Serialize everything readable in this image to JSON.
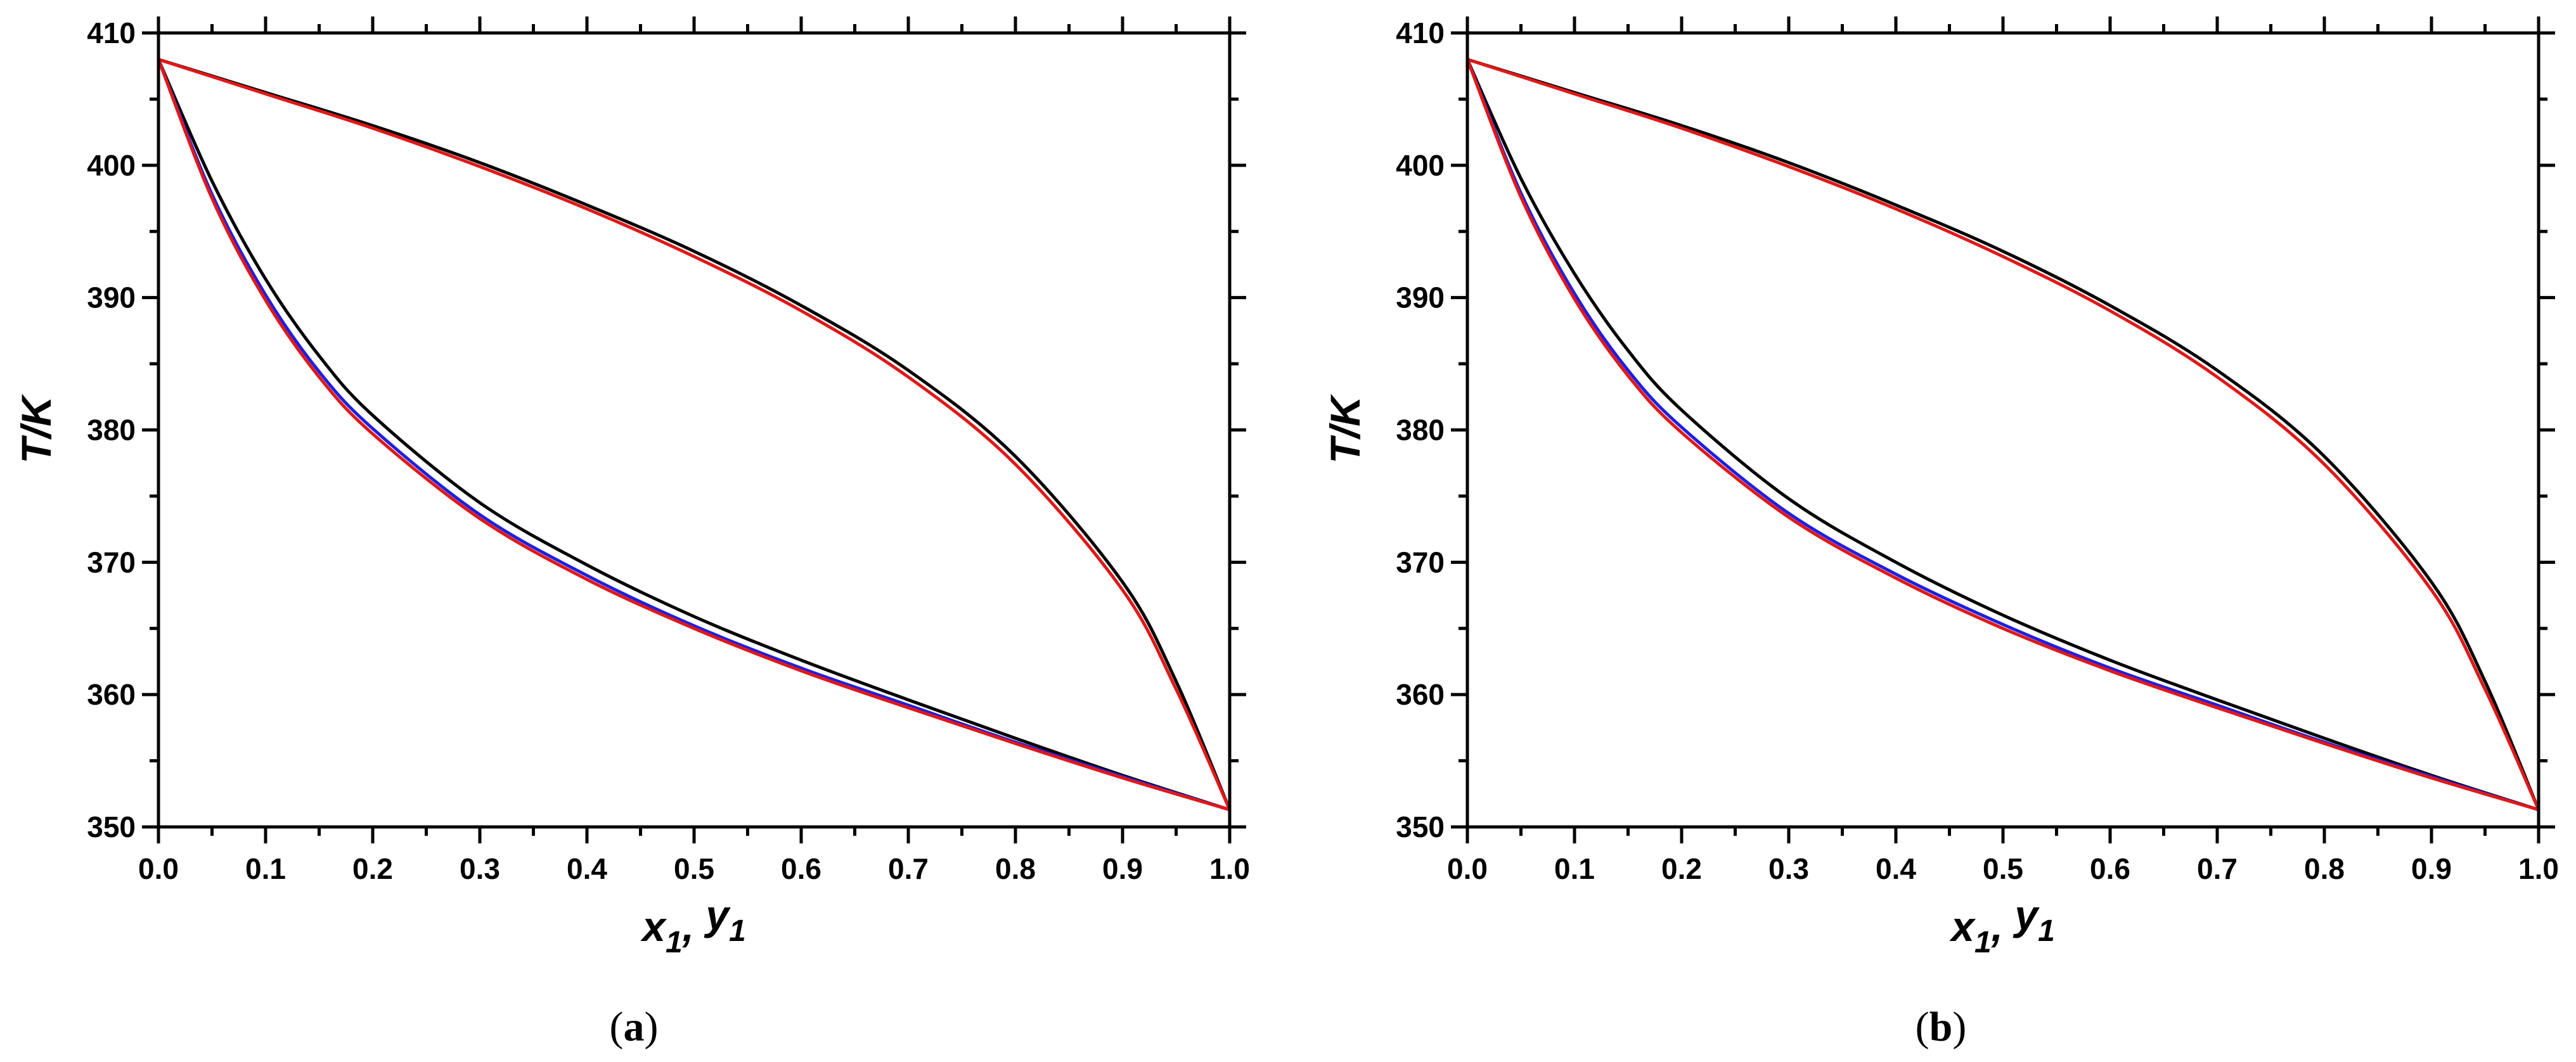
{
  "chart_data": [
    {
      "type": "line",
      "panel_label": {
        "open": "(",
        "letter": "a",
        "close": ")"
      },
      "xlabel": {
        "v1": "x",
        "s1": "1",
        "sep": ", ",
        "v2": "y",
        "s2": "1"
      },
      "ylabel": "T/K",
      "xlim": [
        0.0,
        1.0
      ],
      "ylim": [
        350,
        410
      ],
      "xticks": [
        "0.0",
        "0.1",
        "0.2",
        "0.3",
        "0.4",
        "0.5",
        "0.6",
        "0.7",
        "0.8",
        "0.9",
        "1.0"
      ],
      "yticks": [
        "350",
        "360",
        "370",
        "380",
        "390",
        "400",
        "410"
      ],
      "grid": false,
      "colors": {
        "black": "#000000",
        "blue": "#1f1fe0",
        "red": "#e01818"
      },
      "series": [
        {
          "color": "black",
          "x": [
            0.0,
            0.1,
            0.2,
            0.3,
            0.4,
            0.5,
            0.6,
            0.7,
            0.8,
            0.9,
            0.95,
            1.0
          ],
          "y": [
            408.0,
            405.5,
            403.0,
            400.2,
            397.0,
            393.5,
            389.4,
            384.5,
            378.0,
            368.5,
            361.0,
            351.3
          ]
        },
        {
          "color": "red",
          "x": [
            0.0,
            0.1,
            0.2,
            0.3,
            0.4,
            0.5,
            0.6,
            0.7,
            0.8,
            0.9,
            0.95,
            1.0
          ],
          "y": [
            408.0,
            405.4,
            402.8,
            399.9,
            396.7,
            393.1,
            389.0,
            384.0,
            377.4,
            367.9,
            360.4,
            351.3
          ]
        },
        {
          "color": "black",
          "x": [
            0.0,
            0.05,
            0.1,
            0.15,
            0.2,
            0.3,
            0.4,
            0.5,
            0.6,
            0.7,
            0.8,
            0.9,
            1.0
          ],
          "y": [
            408.0,
            398.8,
            391.4,
            385.6,
            381.1,
            374.5,
            369.8,
            365.9,
            362.6,
            359.6,
            356.7,
            353.9,
            351.3
          ]
        },
        {
          "color": "blue",
          "x": [
            0.0,
            0.05,
            0.1,
            0.15,
            0.2,
            0.3,
            0.4,
            0.5,
            0.6,
            0.7,
            0.8,
            0.9,
            1.0
          ],
          "y": [
            408.0,
            397.8,
            390.2,
            384.4,
            380.1,
            373.6,
            369.0,
            365.2,
            362.0,
            359.2,
            356.4,
            353.8,
            351.3
          ]
        },
        {
          "color": "red",
          "x": [
            0.0,
            0.05,
            0.1,
            0.15,
            0.2,
            0.3,
            0.4,
            0.5,
            0.6,
            0.7,
            0.8,
            0.9,
            1.0
          ],
          "y": [
            408.0,
            397.5,
            389.8,
            384.0,
            379.7,
            373.3,
            368.7,
            365.0,
            361.8,
            359.0,
            356.3,
            353.7,
            351.3
          ]
        }
      ]
    },
    {
      "type": "line",
      "panel_label": {
        "open": "(",
        "letter": "b",
        "close": ")"
      },
      "xlabel": {
        "v1": "x",
        "s1": "1",
        "sep": ", ",
        "v2": "y",
        "s2": "1"
      },
      "ylabel": "T/K",
      "xlim": [
        0.0,
        1.0
      ],
      "ylim": [
        350,
        410
      ],
      "xticks": [
        "0.0",
        "0.1",
        "0.2",
        "0.3",
        "0.4",
        "0.5",
        "0.6",
        "0.7",
        "0.8",
        "0.9",
        "1.0"
      ],
      "yticks": [
        "350",
        "360",
        "370",
        "380",
        "390",
        "400",
        "410"
      ],
      "grid": false,
      "colors": {
        "black": "#000000",
        "blue": "#1f1fe0",
        "red": "#e01818"
      },
      "series": [
        {
          "color": "black",
          "x": [
            0.0,
            0.1,
            0.2,
            0.3,
            0.4,
            0.5,
            0.6,
            0.7,
            0.8,
            0.9,
            0.95,
            1.0
          ],
          "y": [
            408.0,
            405.5,
            403.0,
            400.2,
            397.0,
            393.5,
            389.4,
            384.5,
            378.0,
            368.5,
            361.0,
            351.3
          ]
        },
        {
          "color": "red",
          "x": [
            0.0,
            0.1,
            0.2,
            0.3,
            0.4,
            0.5,
            0.6,
            0.7,
            0.8,
            0.9,
            0.95,
            1.0
          ],
          "y": [
            408.0,
            405.4,
            402.8,
            399.9,
            396.7,
            393.1,
            389.0,
            384.0,
            377.4,
            367.9,
            360.4,
            351.3
          ]
        },
        {
          "color": "black",
          "x": [
            0.0,
            0.05,
            0.1,
            0.15,
            0.2,
            0.3,
            0.4,
            0.5,
            0.6,
            0.7,
            0.8,
            0.9,
            1.0
          ],
          "y": [
            408.0,
            399.0,
            391.8,
            386.0,
            381.5,
            374.8,
            370.0,
            366.0,
            362.6,
            359.6,
            356.7,
            353.9,
            351.3
          ]
        },
        {
          "color": "blue",
          "x": [
            0.0,
            0.05,
            0.1,
            0.15,
            0.2,
            0.3,
            0.4,
            0.5,
            0.6,
            0.7,
            0.8,
            0.9,
            1.0
          ],
          "y": [
            408.0,
            397.9,
            390.3,
            384.5,
            380.2,
            373.7,
            369.1,
            365.3,
            362.0,
            359.2,
            356.4,
            353.8,
            351.3
          ]
        },
        {
          "color": "red",
          "x": [
            0.0,
            0.05,
            0.1,
            0.15,
            0.2,
            0.3,
            0.4,
            0.5,
            0.6,
            0.7,
            0.8,
            0.9,
            1.0
          ],
          "y": [
            408.0,
            397.6,
            389.9,
            384.1,
            379.8,
            373.4,
            368.8,
            365.0,
            361.8,
            359.0,
            356.3,
            353.7,
            351.3
          ]
        }
      ]
    }
  ]
}
